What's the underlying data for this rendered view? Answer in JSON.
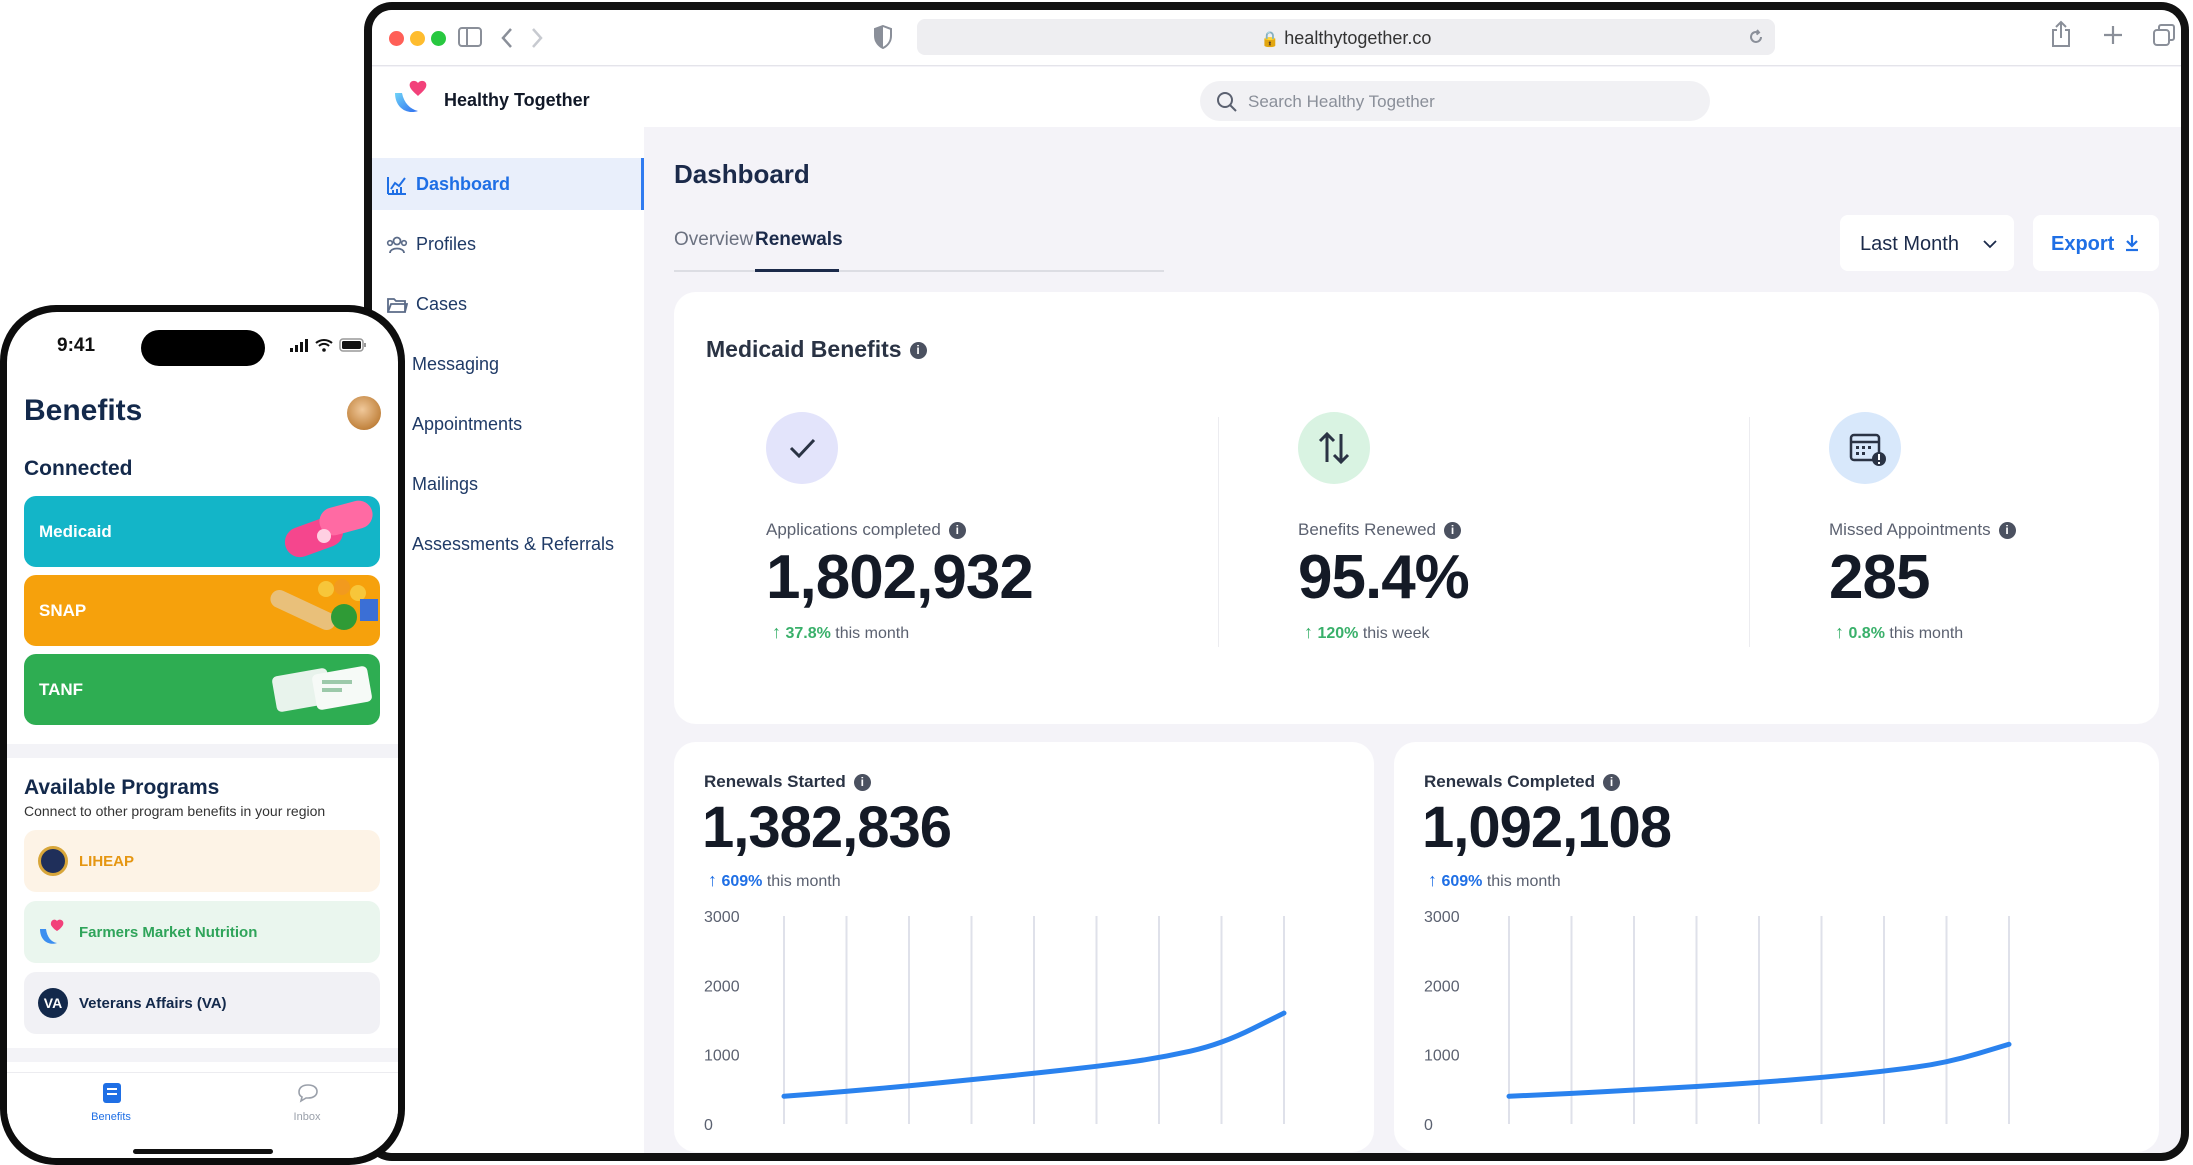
{
  "browser": {
    "url": "healthytogether.co"
  },
  "app": {
    "name": "Healthy Together",
    "search_placeholder": "Search Healthy Together"
  },
  "sidebar": {
    "items": [
      {
        "label": "Dashboard",
        "icon": "chart-icon",
        "active": true
      },
      {
        "label": "Profiles",
        "icon": "people-icon"
      },
      {
        "label": "Cases",
        "icon": "folder-icon"
      },
      {
        "label": "Messaging",
        "icon": ""
      },
      {
        "label": "Appointments",
        "icon": ""
      },
      {
        "label": "Mailings",
        "icon": ""
      },
      {
        "label": "Assessments & Referrals",
        "icon": ""
      }
    ]
  },
  "dashboard": {
    "title": "Dashboard",
    "tabs": [
      {
        "label": "Overview",
        "active": false
      },
      {
        "label": "Renewals",
        "active": true
      }
    ],
    "period": "Last Month",
    "export_label": "Export"
  },
  "medicaid": {
    "title": "Medicaid Benefits",
    "stats": [
      {
        "label": "Applications completed",
        "value": "1,802,932",
        "change": "37.8%",
        "period": "this month",
        "icon": "check-icon",
        "color": "#e3e4fb"
      },
      {
        "label": "Benefits Renewed",
        "value": "95.4%",
        "change": "120%",
        "period": "this week",
        "icon": "arrows-up-down-icon",
        "color": "#d9f3e2"
      },
      {
        "label": "Missed Appointments",
        "value": "285",
        "change": "0.8%",
        "period": "this month",
        "icon": "calendar-icon",
        "color": "#d8e8fb"
      }
    ]
  },
  "renewals_started": {
    "title": "Renewals Started",
    "value": "1,382,836",
    "change": "609%",
    "period": "this month"
  },
  "renewals_completed": {
    "title": "Renewals Completed",
    "value": "1,092,108",
    "change": "609%",
    "period": "this month"
  },
  "chart_data": [
    {
      "type": "line",
      "title": "Renewals Started",
      "yticks": [
        "3000",
        "2000",
        "1000",
        "0"
      ],
      "ylim": [
        0,
        3000
      ],
      "x": [
        0,
        1,
        2,
        3,
        4,
        5,
        6,
        7,
        8
      ],
      "series": [
        {
          "values": [
            400,
            470,
            550,
            640,
            730,
            830,
            950,
            1150,
            1600
          ]
        }
      ],
      "grid": "vertical"
    },
    {
      "type": "line",
      "title": "Renewals Completed",
      "yticks": [
        "3000",
        "2000",
        "1000",
        "0"
      ],
      "ylim": [
        0,
        3000
      ],
      "x": [
        0,
        1,
        2,
        3,
        4,
        5,
        6,
        7,
        8
      ],
      "series": [
        {
          "values": [
            400,
            440,
            490,
            540,
            600,
            670,
            760,
            880,
            1150
          ]
        }
      ],
      "grid": "vertical"
    }
  ],
  "phone": {
    "time": "9:41",
    "title": "Benefits",
    "connected_heading": "Connected",
    "connected": [
      {
        "label": "Medicaid",
        "color": "#13b5c8"
      },
      {
        "label": "SNAP",
        "color": "#f6a10c"
      },
      {
        "label": "TANF",
        "color": "#2ead52"
      }
    ],
    "available_heading": "Available Programs",
    "available_sub": "Connect to other program benefits in your region",
    "programs": [
      {
        "label": "LIHEAP",
        "bg": "#fdf3e6",
        "color": "#e59612",
        "icon": "seal-icon"
      },
      {
        "label": "Farmers Market Nutrition",
        "bg": "#eaf6ee",
        "color": "#2fa45a",
        "icon": "heart-logo-icon"
      },
      {
        "label": "Veterans Affairs (VA)",
        "bg": "#f1f1f5",
        "color": "#13294b",
        "icon": "va-icon",
        "icon_text": "VA"
      }
    ],
    "tabs": [
      {
        "label": "Benefits",
        "active": true,
        "icon": "benefits-icon"
      },
      {
        "label": "Inbox",
        "active": false,
        "icon": "chat-icon"
      }
    ]
  }
}
